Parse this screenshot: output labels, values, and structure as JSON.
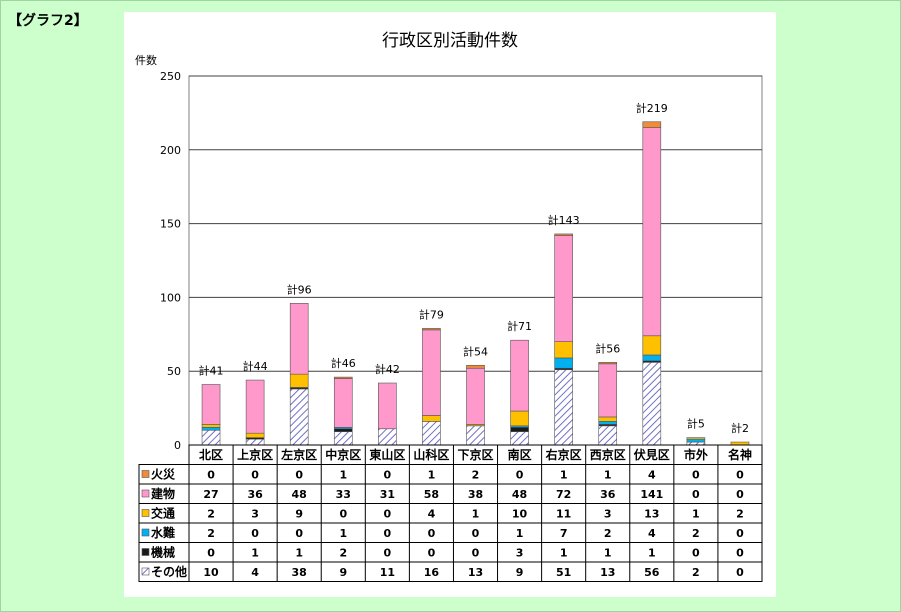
{
  "page_label": "【グラフ2】",
  "chart_data": {
    "type": "bar",
    "stacked": true,
    "title": "行政区別活動件数",
    "ylabel": "件数",
    "ylim": [
      0,
      250
    ],
    "yticks": [
      0,
      50,
      100,
      150,
      200,
      250
    ],
    "grid": true,
    "legend": "table-left",
    "categories": [
      "北区",
      "上京区",
      "左京区",
      "中京区",
      "東山区",
      "山科区",
      "下京区",
      "南区",
      "右京区",
      "西京区",
      "伏見区",
      "市外",
      "名神"
    ],
    "totals": [
      "計41",
      "計44",
      "計96",
      "計46",
      "計42",
      "計79",
      "計54",
      "計71",
      "計143",
      "計56",
      "計219",
      "計5",
      "計2"
    ],
    "series": [
      {
        "name": "火災",
        "color": "#f08a3c",
        "values": [
          0,
          0,
          0,
          1,
          0,
          1,
          2,
          0,
          1,
          1,
          4,
          0,
          0
        ]
      },
      {
        "name": "建物",
        "color": "#ff99cc",
        "values": [
          27,
          36,
          48,
          33,
          31,
          58,
          38,
          48,
          72,
          36,
          141,
          0,
          0
        ]
      },
      {
        "name": "交通",
        "color": "#ffc000",
        "values": [
          2,
          3,
          9,
          0,
          0,
          4,
          1,
          10,
          11,
          3,
          13,
          1,
          2
        ]
      },
      {
        "name": "水難",
        "color": "#00b0f0",
        "values": [
          2,
          0,
          0,
          1,
          0,
          0,
          0,
          1,
          7,
          2,
          4,
          2,
          0
        ]
      },
      {
        "name": "機械",
        "color": "#1a1a1a",
        "values": [
          0,
          1,
          1,
          2,
          0,
          0,
          0,
          3,
          1,
          1,
          1,
          0,
          0
        ]
      },
      {
        "name": "その他",
        "color": "#8080d0",
        "pattern": "hatch",
        "values": [
          10,
          4,
          38,
          9,
          11,
          16,
          13,
          9,
          51,
          13,
          56,
          2,
          0
        ]
      }
    ]
  }
}
